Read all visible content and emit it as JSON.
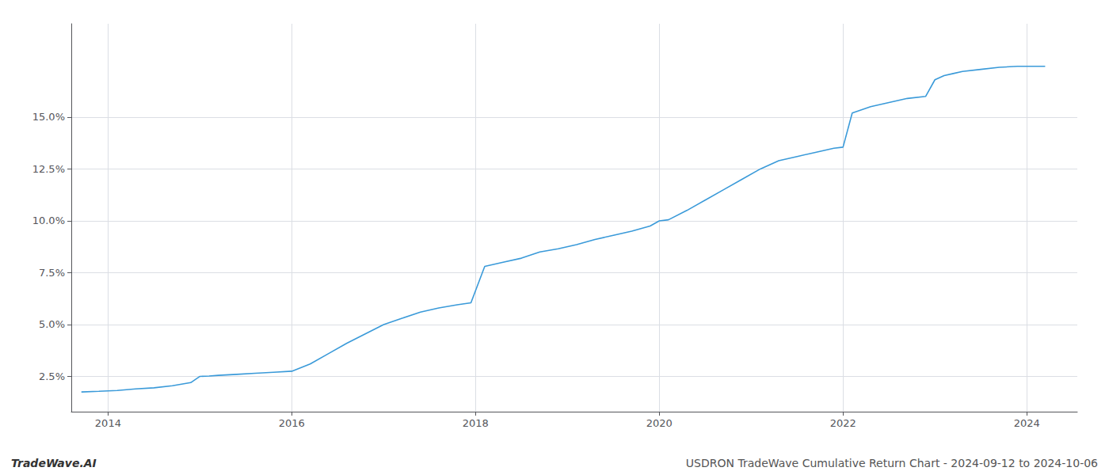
{
  "chart_data": {
    "type": "line",
    "annotations": [
      "TradeWave.AI",
      "USDRON TradeWave Cumulative Return Chart - 2024-09-12 to 2024-10-06"
    ],
    "x": [
      2013.71,
      2013.9,
      2014.1,
      2014.3,
      2014.5,
      2014.7,
      2014.9,
      2015.0,
      2015.1,
      2015.2,
      2015.4,
      2015.6,
      2015.8,
      2016.0,
      2016.2,
      2016.4,
      2016.6,
      2016.8,
      2017.0,
      2017.2,
      2017.4,
      2017.6,
      2017.8,
      2017.95,
      2018.1,
      2018.3,
      2018.5,
      2018.7,
      2018.9,
      2019.1,
      2019.3,
      2019.5,
      2019.7,
      2019.9,
      2020.0,
      2020.1,
      2020.3,
      2020.5,
      2020.7,
      2020.9,
      2021.1,
      2021.3,
      2021.5,
      2021.7,
      2021.9,
      2022.0,
      2022.1,
      2022.3,
      2022.5,
      2022.7,
      2022.9,
      2023.0,
      2023.1,
      2023.2,
      2023.3,
      2023.5,
      2023.7,
      2023.9,
      2024.0,
      2024.1,
      2024.2
    ],
    "values": [
      1.75,
      1.78,
      1.82,
      1.9,
      1.95,
      2.05,
      2.2,
      2.5,
      2.52,
      2.55,
      2.6,
      2.65,
      2.7,
      2.75,
      3.1,
      3.6,
      4.1,
      4.55,
      5.0,
      5.3,
      5.6,
      5.8,
      5.95,
      6.05,
      7.8,
      8.0,
      8.2,
      8.5,
      8.65,
      8.85,
      9.1,
      9.3,
      9.5,
      9.75,
      10.0,
      10.05,
      10.5,
      11.0,
      11.5,
      12.0,
      12.5,
      12.9,
      13.1,
      13.3,
      13.5,
      13.55,
      15.2,
      15.5,
      15.7,
      15.9,
      16.0,
      16.8,
      17.0,
      17.1,
      17.2,
      17.3,
      17.4,
      17.45,
      17.45,
      17.45,
      17.45
    ],
    "color": "#3a9ad9",
    "xlim": [
      2013.6,
      2024.55
    ],
    "xticks": [
      2014,
      2016,
      2018,
      2020,
      2022,
      2024
    ],
    "ylim": [
      0.8,
      19.5
    ],
    "yticks": [
      {
        "value": 2.5,
        "label": "2.5%"
      },
      {
        "value": 5.0,
        "label": "5.0%"
      },
      {
        "value": 7.5,
        "label": "7.5%"
      },
      {
        "value": 10.0,
        "label": "10.0%"
      },
      {
        "value": 12.5,
        "label": "12.5%"
      },
      {
        "value": 15.0,
        "label": "15.0%"
      }
    ],
    "grid": true
  }
}
